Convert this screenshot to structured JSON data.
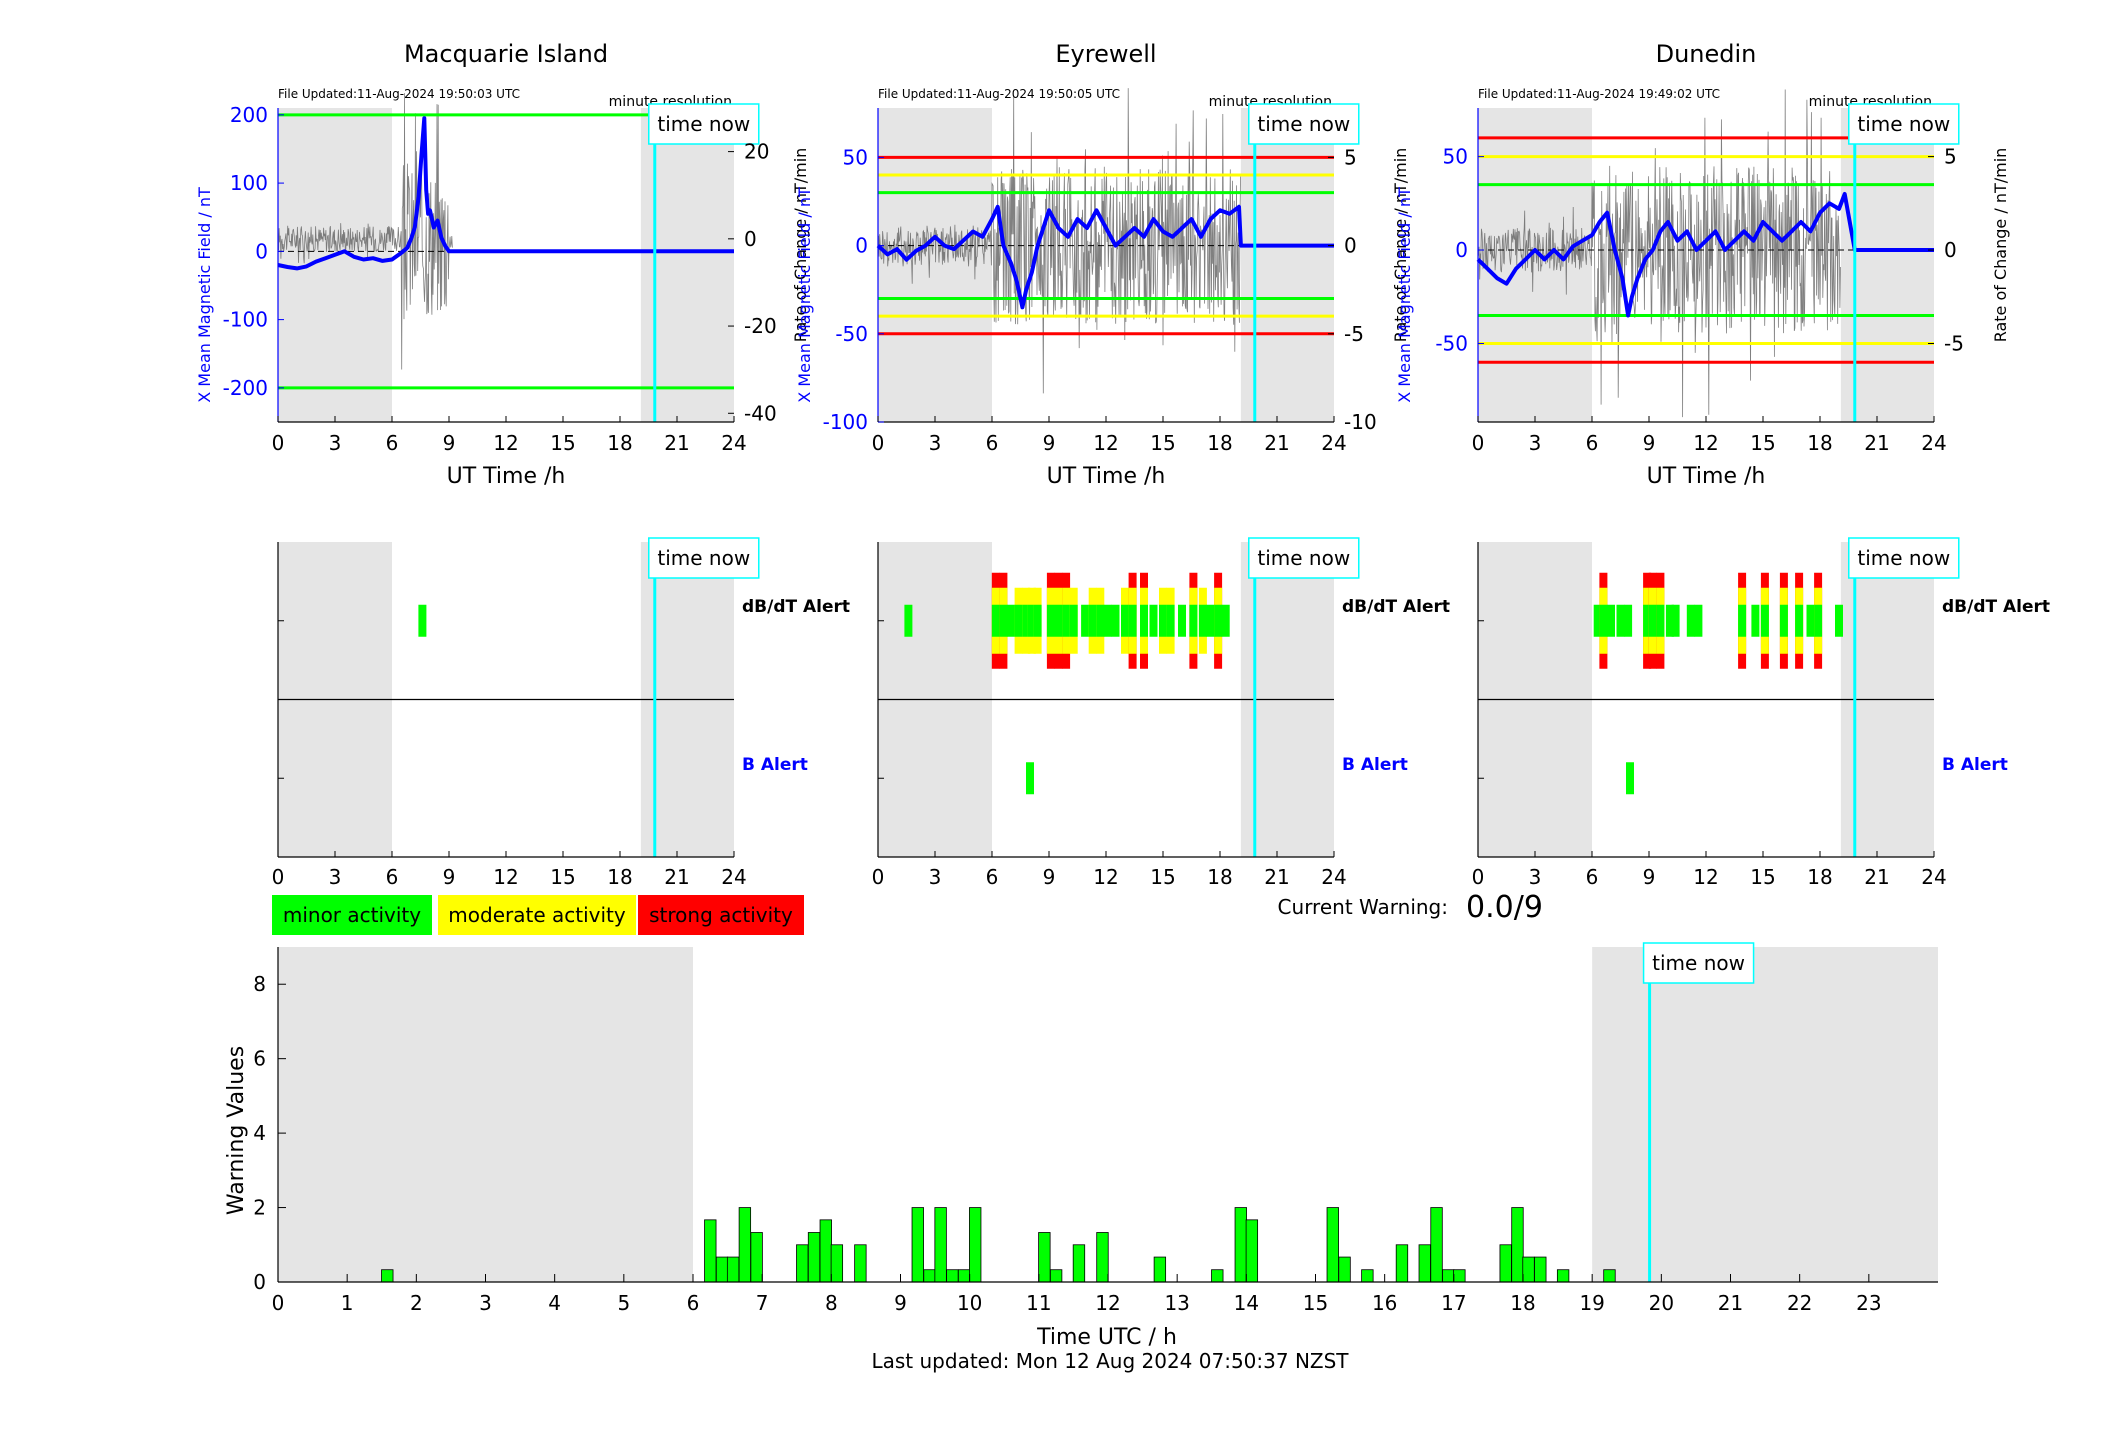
{
  "colors": {
    "blue": "#0000ff",
    "grey_band": "#e5e5e5",
    "minor": "#00ff00",
    "moderate": "#ffff00",
    "strong": "#ff0000",
    "cyan": "#00ffff",
    "trace": "#606060"
  },
  "labels": {
    "time_now": "time now",
    "minute_resolution": "minute resolution",
    "dbdt_alert": "dB/dT Alert",
    "b_alert": "B Alert",
    "current_warning_label": "Current Warning:",
    "current_warning_value": "0.0/9",
    "last_updated": "Last updated: Mon 12 Aug 2024 07:50:37 NZST"
  },
  "legend": [
    {
      "label": "minor activity",
      "color": "#00ff00"
    },
    {
      "label": "moderate activity",
      "color": "#ffff00"
    },
    {
      "label": "strong activity",
      "color": "#ff0000"
    }
  ],
  "chart_data": [
    {
      "type": "line",
      "panel": "field",
      "title": "Macquarie Island",
      "file_updated": "File Updated:11-Aug-2024 19:50:03 UTC",
      "xlabel": "UT Time /h",
      "ylabel_left": "X Mean Magnetic Field / nT",
      "ylabel_right": "Rate of Change / nT/min",
      "xlim": [
        0,
        24
      ],
      "xticks": [
        0,
        3,
        6,
        9,
        12,
        15,
        18,
        21,
        24
      ],
      "ylim_left": [
        -250,
        210
      ],
      "yticks_left": [
        -200,
        -100,
        0,
        100,
        200
      ],
      "ylim_right": [
        -42,
        30
      ],
      "yticks_right": [
        -40,
        -20,
        0,
        20
      ],
      "grey_bands": [
        [
          0,
          6
        ],
        [
          19.1,
          24
        ]
      ],
      "time_now": 19.83,
      "thresholds": [
        {
          "value": 200,
          "color": "green"
        },
        {
          "value": -200,
          "color": "green"
        }
      ],
      "series": [
        {
          "x": [
            0,
            0.5,
            1,
            1.5,
            2,
            2.5,
            3,
            3.5,
            4,
            4.5,
            5,
            5.5,
            6,
            6.5,
            6.8,
            7,
            7.2,
            7.4,
            7.55,
            7.7,
            7.8,
            7.9,
            8.0,
            8.2,
            8.4,
            8.6,
            8.8,
            9,
            9.2,
            19.83,
            24
          ],
          "y": [
            -20,
            -23,
            -25,
            -22,
            -15,
            -10,
            -5,
            0,
            -8,
            -12,
            -10,
            -14,
            -12,
            -2,
            5,
            18,
            35,
            80,
            140,
            195,
            90,
            55,
            60,
            35,
            45,
            20,
            8,
            0,
            0,
            0,
            0
          ]
        }
      ]
    },
    {
      "type": "line",
      "panel": "field",
      "title": "Eyrewell",
      "file_updated": "File Updated:11-Aug-2024 19:50:05 UTC",
      "xlabel": "UT Time /h",
      "ylabel_left": "X Mean Magnetic Field / nT",
      "ylabel_right": "Rate of Change / nT/min",
      "xlim": [
        0,
        24
      ],
      "xticks": [
        0,
        3,
        6,
        9,
        12,
        15,
        18,
        21,
        24
      ],
      "ylim_left": [
        -100,
        78
      ],
      "yticks_left": [
        -100,
        -50,
        0,
        50
      ],
      "ylim_right": [
        -10,
        7.8
      ],
      "yticks_right": [
        -10,
        -5,
        0,
        5
      ],
      "grey_bands": [
        [
          0,
          6
        ],
        [
          19.1,
          24
        ]
      ],
      "time_now": 19.83,
      "thresholds": [
        {
          "value": 50,
          "color": "red"
        },
        {
          "value": 40,
          "color": "yellow"
        },
        {
          "value": 30,
          "color": "green"
        },
        {
          "value": -30,
          "color": "green"
        },
        {
          "value": -40,
          "color": "yellow"
        },
        {
          "value": -50,
          "color": "red"
        }
      ],
      "series": [
        {
          "x": [
            0,
            0.5,
            1,
            1.5,
            2,
            2.5,
            3,
            3.5,
            4,
            4.5,
            5,
            5.5,
            6,
            6.3,
            6.6,
            7,
            7.3,
            7.6,
            7.8,
            8.1,
            8.4,
            8.7,
            9,
            9.5,
            10,
            10.5,
            11,
            11.5,
            12,
            12.5,
            13,
            13.5,
            14,
            14.5,
            15,
            15.5,
            16,
            16.5,
            17,
            17.5,
            18,
            18.5,
            19,
            19.1,
            19.83,
            24
          ],
          "y": [
            0,
            -5,
            -2,
            -8,
            -3,
            0,
            5,
            0,
            -2,
            3,
            8,
            5,
            15,
            22,
            0,
            -10,
            -20,
            -35,
            -25,
            -15,
            0,
            10,
            20,
            10,
            5,
            15,
            10,
            20,
            10,
            0,
            5,
            10,
            5,
            15,
            8,
            5,
            10,
            15,
            5,
            15,
            20,
            18,
            22,
            0,
            0,
            0
          ]
        }
      ]
    },
    {
      "type": "line",
      "panel": "field",
      "title": "Dunedin",
      "file_updated": "File Updated:11-Aug-2024 19:49:02 UTC",
      "xlabel": "UT Time /h",
      "ylabel_left": "X Mean Magnetic Field / nT",
      "ylabel_right": "Rate of Change / nT/min",
      "xlim": [
        0,
        24
      ],
      "xticks": [
        0,
        3,
        6,
        9,
        12,
        15,
        18,
        21,
        24
      ],
      "ylim_left": [
        -92,
        76
      ],
      "yticks_left": [
        -50,
        0,
        50
      ],
      "ylim_right": [
        -9.2,
        7.6
      ],
      "yticks_right": [
        -5,
        0,
        5
      ],
      "grey_bands": [
        [
          0,
          6
        ],
        [
          19.1,
          24
        ]
      ],
      "time_now": 19.83,
      "thresholds": [
        {
          "value": 60,
          "color": "red"
        },
        {
          "value": 50,
          "color": "yellow"
        },
        {
          "value": 35,
          "color": "green"
        },
        {
          "value": -35,
          "color": "green"
        },
        {
          "value": -50,
          "color": "yellow"
        },
        {
          "value": -60,
          "color": "red"
        }
      ],
      "series": [
        {
          "x": [
            0,
            0.5,
            1,
            1.5,
            2,
            2.5,
            3,
            3.5,
            4,
            4.5,
            5,
            5.5,
            6,
            6.4,
            6.8,
            7.2,
            7.6,
            7.9,
            8.1,
            8.4,
            8.8,
            9.2,
            9.6,
            10,
            10.5,
            11,
            11.5,
            12,
            12.5,
            13,
            13.5,
            14,
            14.5,
            15,
            15.5,
            16,
            16.5,
            17,
            17.5,
            18,
            18.5,
            19,
            19.3,
            19.83,
            24
          ],
          "y": [
            -5,
            -10,
            -15,
            -18,
            -10,
            -5,
            0,
            -5,
            0,
            -5,
            2,
            5,
            8,
            15,
            20,
            0,
            -15,
            -35,
            -25,
            -15,
            -5,
            0,
            10,
            15,
            5,
            10,
            0,
            5,
            10,
            0,
            5,
            10,
            5,
            15,
            10,
            5,
            10,
            15,
            10,
            20,
            25,
            22,
            30,
            0,
            0
          ]
        }
      ]
    },
    {
      "type": "heatmap",
      "panel": "alert",
      "station": "Macquarie Island",
      "xlim": [
        0,
        24
      ],
      "xticks": [
        0,
        3,
        6,
        9,
        12,
        15,
        18,
        21,
        24
      ],
      "grey_bands": [
        [
          0,
          6
        ],
        [
          19.1,
          24
        ]
      ],
      "time_now": 19.83,
      "rows": [
        "dB/dT Alert",
        "B Alert"
      ],
      "dbdt_alerts": [
        {
          "t": 7.6,
          "level": 1
        }
      ],
      "b_alerts": []
    },
    {
      "type": "heatmap",
      "panel": "alert",
      "station": "Eyrewell",
      "xlim": [
        0,
        24
      ],
      "xticks": [
        0,
        3,
        6,
        9,
        12,
        15,
        18,
        21,
        24
      ],
      "grey_bands": [
        [
          0,
          6
        ],
        [
          19.1,
          24
        ]
      ],
      "time_now": 19.83,
      "rows": [
        "dB/dT Alert",
        "B Alert"
      ],
      "dbdt_alerts": [
        {
          "t": 1.6,
          "level": 1
        },
        {
          "t": 6.2,
          "level": 3
        },
        {
          "t": 6.6,
          "level": 3
        },
        {
          "t": 7.0,
          "level": 1
        },
        {
          "t": 7.4,
          "level": 2
        },
        {
          "t": 7.8,
          "level": 2
        },
        {
          "t": 8.1,
          "level": 2
        },
        {
          "t": 8.4,
          "level": 2
        },
        {
          "t": 9.1,
          "level": 3
        },
        {
          "t": 9.5,
          "level": 3
        },
        {
          "t": 9.9,
          "level": 3
        },
        {
          "t": 10.3,
          "level": 2
        },
        {
          "t": 10.9,
          "level": 1
        },
        {
          "t": 11.3,
          "level": 2
        },
        {
          "t": 11.7,
          "level": 2
        },
        {
          "t": 12.1,
          "level": 1
        },
        {
          "t": 12.5,
          "level": 1
        },
        {
          "t": 13.0,
          "level": 2
        },
        {
          "t": 13.4,
          "level": 3
        },
        {
          "t": 14.0,
          "level": 3
        },
        {
          "t": 14.5,
          "level": 1
        },
        {
          "t": 15.0,
          "level": 2
        },
        {
          "t": 15.4,
          "level": 2
        },
        {
          "t": 16.0,
          "level": 1
        },
        {
          "t": 16.6,
          "level": 3
        },
        {
          "t": 17.1,
          "level": 2
        },
        {
          "t": 17.5,
          "level": 1
        },
        {
          "t": 17.9,
          "level": 3
        },
        {
          "t": 18.3,
          "level": 1
        }
      ],
      "b_alerts": [
        {
          "t": 8.0,
          "level": 1
        }
      ]
    },
    {
      "type": "heatmap",
      "panel": "alert",
      "station": "Dunedin",
      "xlim": [
        0,
        24
      ],
      "xticks": [
        0,
        3,
        6,
        9,
        12,
        15,
        18,
        21,
        24
      ],
      "grey_bands": [
        [
          0,
          6
        ],
        [
          19.1,
          24
        ]
      ],
      "time_now": 19.83,
      "rows": [
        "dB/dT Alert",
        "B Alert"
      ],
      "dbdt_alerts": [
        {
          "t": 6.3,
          "level": 1
        },
        {
          "t": 6.6,
          "level": 3
        },
        {
          "t": 7.0,
          "level": 1
        },
        {
          "t": 7.5,
          "level": 1
        },
        {
          "t": 7.9,
          "level": 1
        },
        {
          "t": 8.9,
          "level": 3
        },
        {
          "t": 9.2,
          "level": 3
        },
        {
          "t": 9.6,
          "level": 3
        },
        {
          "t": 10.1,
          "level": 1
        },
        {
          "t": 10.4,
          "level": 1
        },
        {
          "t": 11.2,
          "level": 1
        },
        {
          "t": 11.6,
          "level": 1
        },
        {
          "t": 13.9,
          "level": 3
        },
        {
          "t": 14.6,
          "level": 1
        },
        {
          "t": 15.1,
          "level": 3
        },
        {
          "t": 16.1,
          "level": 3
        },
        {
          "t": 16.9,
          "level": 3
        },
        {
          "t": 17.5,
          "level": 1
        },
        {
          "t": 17.9,
          "level": 3
        },
        {
          "t": 19.0,
          "level": 1
        }
      ],
      "b_alerts": [
        {
          "t": 8.0,
          "level": 1
        }
      ]
    },
    {
      "type": "bar",
      "panel": "warning",
      "xlabel": "Time UTC / h",
      "ylabel": "Warning Values",
      "xlim": [
        0,
        24
      ],
      "xticks": [
        0,
        1,
        2,
        3,
        4,
        5,
        6,
        7,
        8,
        9,
        10,
        11,
        12,
        13,
        14,
        15,
        16,
        17,
        18,
        19,
        20,
        21,
        22,
        23
      ],
      "ylim": [
        0,
        9
      ],
      "yticks": [
        0,
        2,
        4,
        6,
        8
      ],
      "grey_bands": [
        [
          0,
          6
        ],
        [
          19,
          24
        ]
      ],
      "time_now": 19.83,
      "x": [
        1.58,
        6.25,
        6.42,
        6.58,
        6.75,
        6.92,
        7.58,
        7.75,
        7.92,
        8.08,
        8.42,
        9.25,
        9.42,
        9.58,
        9.75,
        9.92,
        10.08,
        11.08,
        11.25,
        11.58,
        11.92,
        12.75,
        13.58,
        13.92,
        14.08,
        15.25,
        15.42,
        15.75,
        16.25,
        16.58,
        16.75,
        16.92,
        17.08,
        17.75,
        17.92,
        18.08,
        18.25,
        18.58,
        19.25
      ],
      "values": [
        0.33,
        1.67,
        0.67,
        0.67,
        2.0,
        1.33,
        1.0,
        1.33,
        1.67,
        1.0,
        1.0,
        2.0,
        0.33,
        2.0,
        0.33,
        0.33,
        2.0,
        1.33,
        0.33,
        1.0,
        1.33,
        0.67,
        0.33,
        2.0,
        1.67,
        2.0,
        0.67,
        0.33,
        1.0,
        1.0,
        2.0,
        0.33,
        0.33,
        1.0,
        2.0,
        0.67,
        0.67,
        0.33,
        0.33
      ]
    }
  ]
}
